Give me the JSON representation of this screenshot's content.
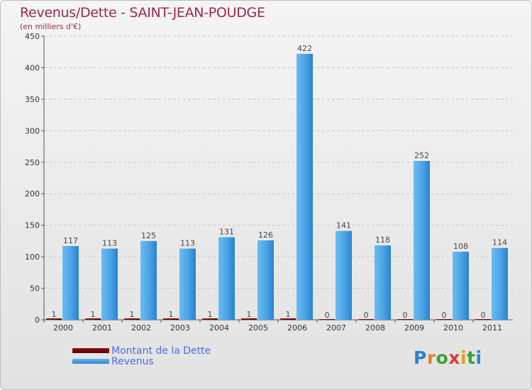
{
  "title": "Revenus/Dette - SAINT-JEAN-POUDGE",
  "subtitle": "(en milliers d'€)",
  "legend": {
    "debt": "Montant de la Dette",
    "revenue": "Revenus"
  },
  "logo": {
    "text": "Proxiti"
  },
  "colors": {
    "debt": "#6b0a0a",
    "revenue": "#4aa3e6",
    "title": "#9b2a45",
    "legend_text": "#4d6de0"
  },
  "chart_data": {
    "type": "bar",
    "title": "Revenus/Dette - SAINT-JEAN-POUDGE",
    "ylabel": "(en milliers d'€)",
    "xlabel": "",
    "ylim": [
      0,
      450
    ],
    "yticks": [
      0,
      50,
      100,
      150,
      200,
      250,
      300,
      350,
      400,
      450
    ],
    "categories": [
      "2000",
      "2001",
      "2002",
      "2003",
      "2004",
      "2005",
      "2006",
      "2007",
      "2008",
      "2009",
      "2010",
      "2011"
    ],
    "series": [
      {
        "name": "Montant de la Dette",
        "values": [
          1,
          1,
          1,
          1,
          1,
          1,
          1,
          0,
          0,
          0,
          0,
          0
        ]
      },
      {
        "name": "Revenus",
        "values": [
          117,
          113,
          125,
          113,
          131,
          126,
          422,
          141,
          118,
          252,
          108,
          114
        ]
      }
    ],
    "grid": true,
    "legend_position": "bottom-left"
  }
}
